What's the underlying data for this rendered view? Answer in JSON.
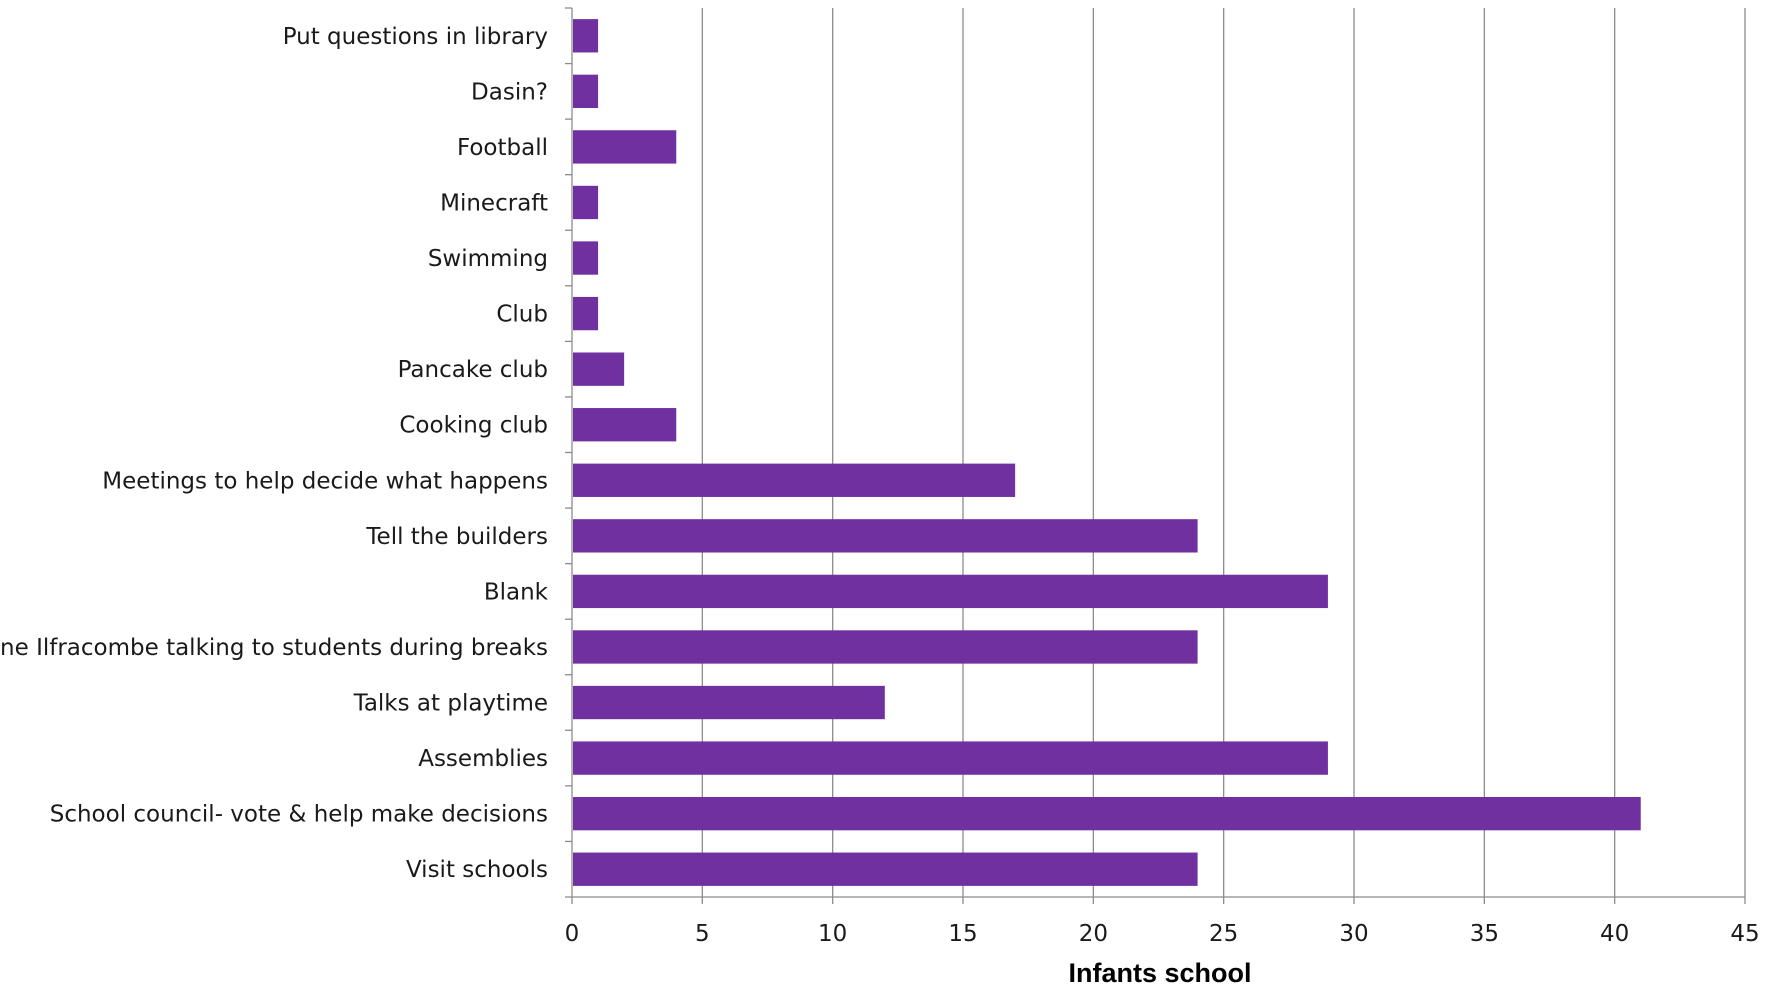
{
  "chart_data": {
    "type": "bar",
    "orientation": "horizontal",
    "categories": [
      "Put questions in library",
      "Dasin?",
      "Football",
      "Minecraft",
      "Swimming",
      "Club",
      "Pancake club",
      "Cooking club",
      "Meetings to help decide what happens",
      "Tell the builders",
      "Blank",
      "One Ilfracombe talking to students during breaks",
      "Talks at playtime",
      "Assemblies",
      "School council- vote & help make decisions",
      "Visit schools"
    ],
    "values": [
      1,
      1,
      4,
      1,
      1,
      1,
      2,
      4,
      17,
      24,
      29,
      24,
      12,
      29,
      41,
      24
    ],
    "xlabel": "Infants school",
    "ylabel": "",
    "xlim": [
      0,
      45
    ],
    "xticks": [
      0,
      5,
      10,
      15,
      20,
      25,
      30,
      35,
      40,
      45
    ],
    "grid": "vertical",
    "legend": "none",
    "bar_color": "#7030a0"
  }
}
